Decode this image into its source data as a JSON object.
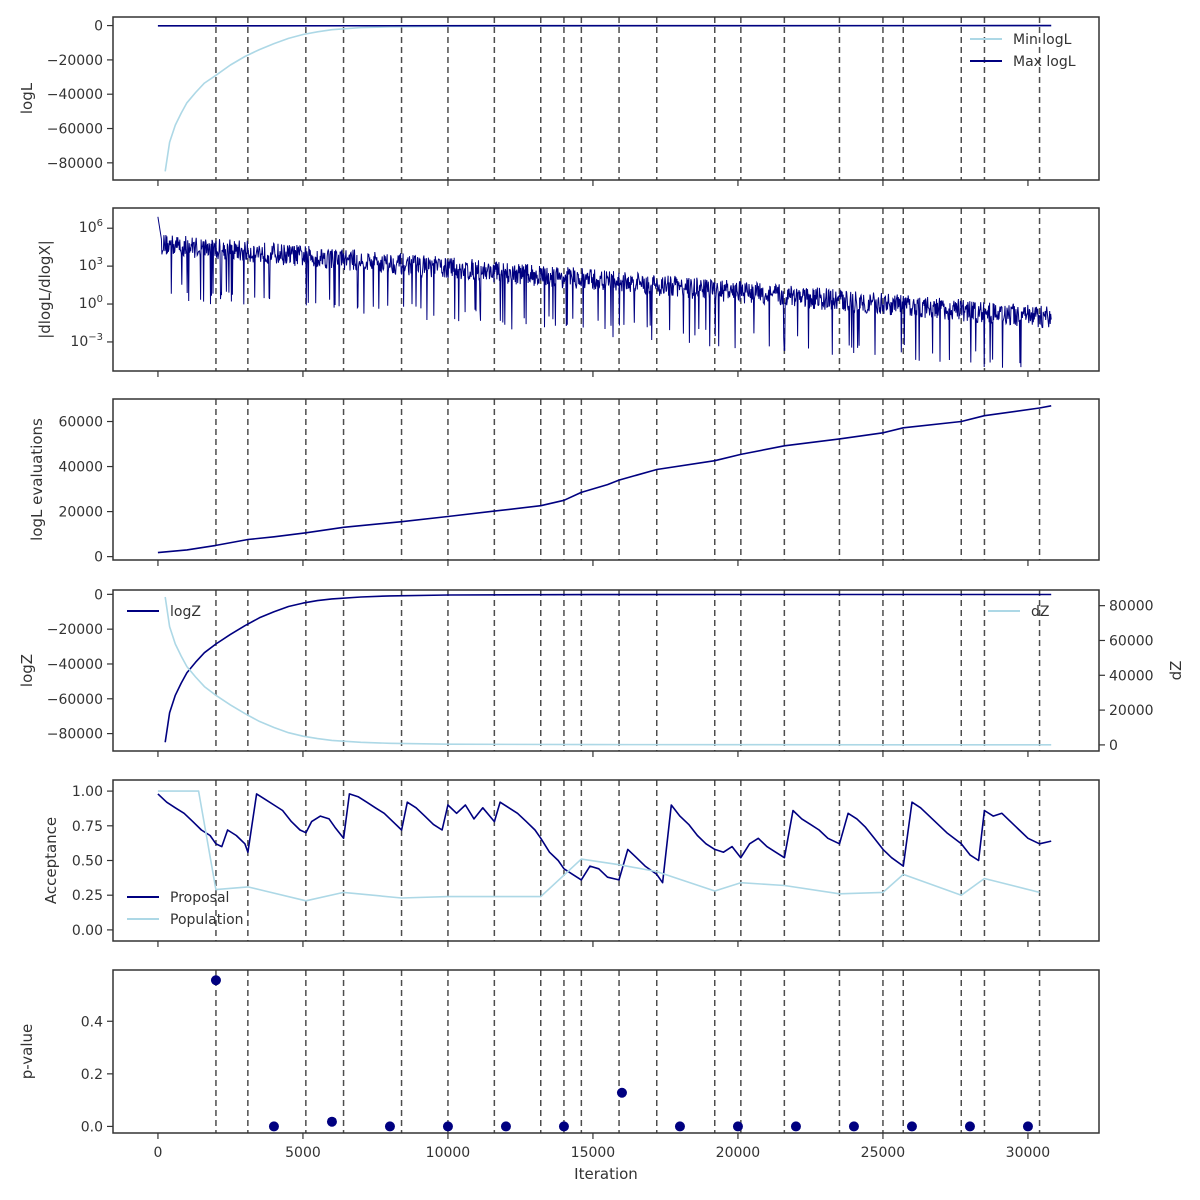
{
  "colors": {
    "navy": "#000080",
    "light": "#add8e6",
    "vline": "#4d4d4d",
    "axis": "#333333"
  },
  "x_axis": {
    "label": "Iteration",
    "ticks": [
      0,
      5000,
      10000,
      15000,
      20000,
      25000,
      30000
    ],
    "range": [
      -1550,
      32450
    ]
  },
  "vertical_markers": [
    2000,
    3100,
    5100,
    6400,
    8400,
    10000,
    11600,
    13200,
    14000,
    14600,
    15900,
    17200,
    19200,
    20100,
    21600,
    23500,
    25000,
    25700,
    27700,
    28500,
    30400
  ],
  "chart_data": [
    {
      "type": "line",
      "ylabel": "logL",
      "ylim": [
        -90000,
        5000
      ],
      "yticks": [
        0,
        -20000,
        -40000,
        -60000,
        -80000
      ],
      "legend_placement": "top-right",
      "series": [
        {
          "name": "Min logL",
          "color": "#add8e6",
          "x": [
            250,
            400,
            600,
            800,
            1000,
            1300,
            1600,
            2000,
            2500,
            3000,
            3500,
            4000,
            4500,
            5000,
            5500,
            6000,
            7000,
            8000,
            10000,
            15000,
            20000,
            25000,
            30000,
            30800
          ],
          "y": [
            -85000,
            -68000,
            -58000,
            -51000,
            -45000,
            -39000,
            -33500,
            -29000,
            -23000,
            -18000,
            -14000,
            -10500,
            -7500,
            -5200,
            -3600,
            -2400,
            -1200,
            -700,
            -400,
            -200,
            -150,
            -100,
            -80,
            -70
          ]
        },
        {
          "name": "Max logL",
          "color": "#000080",
          "x": [
            0,
            30800
          ],
          "y": [
            -150,
            -20
          ]
        }
      ]
    },
    {
      "type": "line",
      "ylabel": "|dlogL/dlogX|",
      "yscale": "log",
      "ylim": [
        -5.3,
        7.6
      ],
      "ytick_labels": [
        "10^6",
        "10^3",
        "10^0",
        "10^-3"
      ],
      "yticks": [
        6,
        3,
        0,
        -3
      ],
      "envelope": {
        "x": [
          0,
          30800
        ],
        "upper_start": 5.6,
        "upper_end": -0.2,
        "lower_start": 2.5,
        "lower_end": -3.4
      },
      "series": [
        {
          "name": "",
          "color": "#000080"
        }
      ]
    },
    {
      "type": "line",
      "ylabel": "logL evaluations",
      "ylim": [
        -1500,
        70000
      ],
      "yticks": [
        0,
        20000,
        40000,
        60000
      ],
      "series": [
        {
          "name": "",
          "color": "#000080",
          "x": [
            0,
            1000,
            2000,
            3100,
            4000,
            5100,
            6400,
            8400,
            10000,
            11600,
            13200,
            14000,
            14600,
            15500,
            15900,
            17200,
            19200,
            20100,
            21600,
            23500,
            25000,
            25700,
            27700,
            28500,
            30400,
            30800
          ],
          "y": [
            1800,
            3000,
            5000,
            7600,
            8800,
            10600,
            13000,
            15500,
            17800,
            20200,
            22600,
            25000,
            28500,
            32000,
            34000,
            38700,
            42600,
            45400,
            49200,
            52300,
            55000,
            57200,
            60000,
            62600,
            66000,
            67000
          ]
        }
      ]
    },
    {
      "type": "line",
      "ylabel": "logZ",
      "ylabel_right": "dZ",
      "ylim": [
        -90000,
        2500
      ],
      "yticks": [
        0,
        -20000,
        -40000,
        -60000,
        -80000
      ],
      "ylim_right": [
        -3500,
        89000
      ],
      "yticks_right": [
        0,
        20000,
        40000,
        60000,
        80000
      ],
      "series": [
        {
          "name": "logZ",
          "color": "#000080",
          "axis": "left",
          "legend": "top-left",
          "x": [
            250,
            400,
            600,
            800,
            1000,
            1300,
            1600,
            2000,
            2500,
            3000,
            3500,
            4000,
            4500,
            5000,
            5500,
            6000,
            7000,
            8000,
            10000,
            15000,
            20000,
            25000,
            30000,
            30800
          ],
          "y": [
            -85000,
            -68000,
            -58000,
            -51000,
            -45000,
            -39000,
            -33500,
            -28500,
            -23000,
            -18000,
            -13500,
            -10000,
            -7000,
            -5000,
            -3600,
            -2600,
            -1500,
            -900,
            -400,
            -150,
            -100,
            -80,
            -70,
            -70
          ]
        },
        {
          "name": "dZ",
          "color": "#add8e6",
          "axis": "right",
          "legend": "top-right",
          "x": [
            250,
            400,
            600,
            800,
            1000,
            1300,
            1600,
            2000,
            2500,
            3000,
            3500,
            4000,
            4500,
            5000,
            5500,
            6000,
            7000,
            8000,
            10000,
            15000,
            20000,
            25000,
            30000,
            30800
          ],
          "y": [
            85000,
            68000,
            58000,
            51000,
            45000,
            39000,
            33500,
            28500,
            23000,
            18000,
            13500,
            10000,
            7000,
            5000,
            3600,
            2600,
            1500,
            900,
            400,
            150,
            100,
            80,
            70,
            70
          ]
        }
      ]
    },
    {
      "type": "line",
      "ylabel": "Acceptance",
      "ylim": [
        -0.08,
        1.08
      ],
      "yticks": [
        0.0,
        0.25,
        0.5,
        0.75,
        1.0
      ],
      "ytick_labels": [
        "0.00",
        "0.25",
        "0.50",
        "0.75",
        "1.00"
      ],
      "legend_placement": "bottom-left",
      "series": [
        {
          "name": "Proposal",
          "color": "#000080",
          "x": [
            0,
            300,
            600,
            900,
            1200,
            1500,
            1800,
            2000,
            2200,
            2400,
            2700,
            3000,
            3100,
            3400,
            3700,
            4000,
            4300,
            4600,
            4900,
            5100,
            5300,
            5600,
            5900,
            6100,
            6400,
            6600,
            6900,
            7200,
            7500,
            7800,
            8100,
            8400,
            8600,
            8900,
            9200,
            9500,
            9800,
            10000,
            10300,
            10600,
            10900,
            11200,
            11600,
            11800,
            12100,
            12400,
            12700,
            13000,
            13200,
            13500,
            13800,
            14000,
            14300,
            14600,
            14900,
            15200,
            15500,
            15900,
            16200,
            16500,
            16800,
            17200,
            17400,
            17700,
            18000,
            18300,
            18600,
            18900,
            19200,
            19500,
            19800,
            20100,
            20400,
            20700,
            21000,
            21300,
            21600,
            21900,
            22200,
            22500,
            22800,
            23100,
            23500,
            23800,
            24100,
            24400,
            24700,
            25000,
            25300,
            25700,
            26000,
            26300,
            26600,
            26900,
            27200,
            27700,
            28000,
            28300,
            28500,
            28800,
            29100,
            29400,
            29700,
            30000,
            30400,
            30800
          ],
          "y": [
            0.98,
            0.92,
            0.88,
            0.84,
            0.78,
            0.72,
            0.68,
            0.62,
            0.6,
            0.72,
            0.68,
            0.62,
            0.56,
            0.98,
            0.94,
            0.9,
            0.86,
            0.78,
            0.72,
            0.7,
            0.78,
            0.82,
            0.8,
            0.74,
            0.66,
            0.98,
            0.96,
            0.92,
            0.88,
            0.84,
            0.78,
            0.72,
            0.92,
            0.88,
            0.82,
            0.76,
            0.72,
            0.9,
            0.84,
            0.9,
            0.8,
            0.88,
            0.78,
            0.92,
            0.88,
            0.84,
            0.78,
            0.72,
            0.66,
            0.56,
            0.5,
            0.44,
            0.4,
            0.36,
            0.46,
            0.44,
            0.38,
            0.36,
            0.58,
            0.52,
            0.46,
            0.4,
            0.34,
            0.9,
            0.82,
            0.76,
            0.68,
            0.62,
            0.58,
            0.56,
            0.6,
            0.52,
            0.62,
            0.66,
            0.6,
            0.56,
            0.52,
            0.86,
            0.8,
            0.76,
            0.72,
            0.66,
            0.62,
            0.84,
            0.8,
            0.74,
            0.66,
            0.58,
            0.52,
            0.46,
            0.92,
            0.88,
            0.82,
            0.76,
            0.7,
            0.62,
            0.54,
            0.5,
            0.86,
            0.82,
            0.84,
            0.78,
            0.72,
            0.66,
            0.62,
            0.64
          ]
        },
        {
          "name": "Population",
          "color": "#add8e6",
          "x": [
            0,
            1400,
            2000,
            3100,
            5100,
            6400,
            8400,
            10000,
            11600,
            13200,
            14600,
            15900,
            17200,
            19200,
            20100,
            21600,
            23500,
            25000,
            25700,
            27700,
            28500,
            30400
          ],
          "y": [
            1.0,
            1.0,
            0.29,
            0.31,
            0.21,
            0.27,
            0.23,
            0.24,
            0.24,
            0.24,
            0.51,
            0.47,
            0.42,
            0.28,
            0.34,
            0.32,
            0.26,
            0.27,
            0.4,
            0.25,
            0.37,
            0.27
          ]
        }
      ]
    },
    {
      "type": "scatter",
      "ylabel": "p-value",
      "ylim": [
        -0.025,
        0.595
      ],
      "yticks": [
        0.0,
        0.2,
        0.4
      ],
      "ytick_labels": [
        "0.0",
        "0.2",
        "0.4"
      ],
      "show_xticklabels": true,
      "series": [
        {
          "name": "",
          "color": "#000080",
          "x": [
            2000,
            4000,
            6000,
            8000,
            10000,
            12000,
            14000,
            16000,
            18000,
            20000,
            22000,
            24000,
            26000,
            28000,
            30000
          ],
          "y": [
            0.556,
            0.0,
            0.018,
            0.0,
            0.0,
            0.0,
            0.0,
            0.128,
            0.0,
            0.0,
            0.0,
            0.0,
            0.0,
            0.0,
            0.0
          ]
        }
      ]
    }
  ]
}
